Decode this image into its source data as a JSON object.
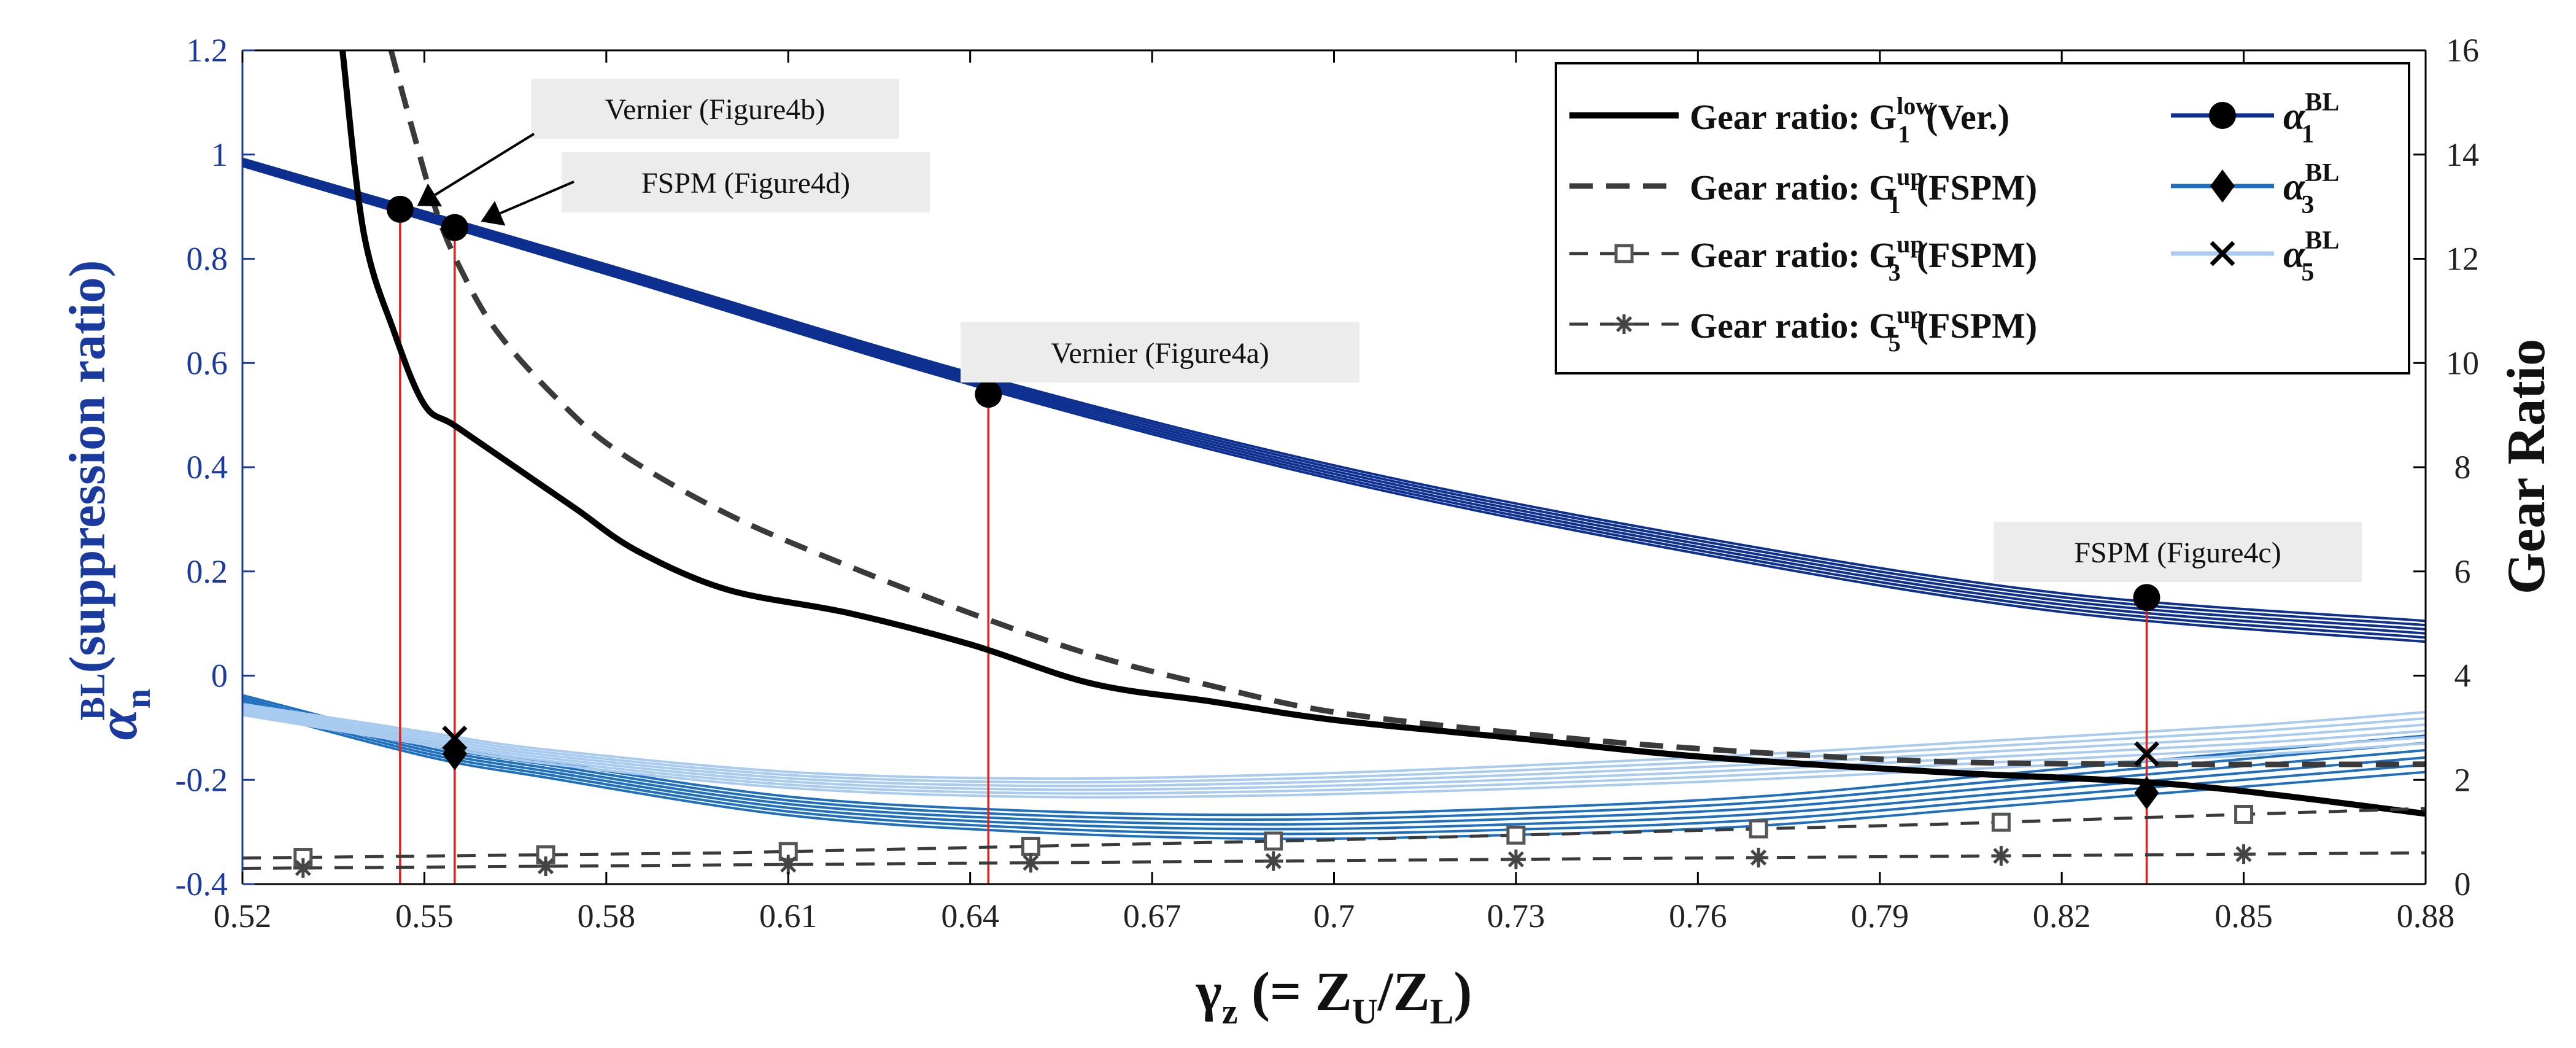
{
  "chart_data": {
    "type": "line",
    "xlabel": {
      "main": "γ",
      "sub": "z",
      "rest": " (= Z",
      "sub2": "U",
      "mid": "/Z",
      "sub3": "L",
      "end": ")"
    },
    "ylabel_left": {
      "main": "α",
      "sup": "BL",
      "sub": "n",
      "rest": "(suppression ratio)"
    },
    "ylabel_right": "Gear Ratio",
    "xlim": [
      0.52,
      0.88
    ],
    "ylim_left": [
      -0.4,
      1.2
    ],
    "ylim_right": [
      0,
      16
    ],
    "x_ticks": [
      "0.52",
      "0.55",
      "0.58",
      "0.61",
      "0.64",
      "0.67",
      "0.7",
      "0.73",
      "0.76",
      "0.79",
      "0.82",
      "0.85",
      "0.88"
    ],
    "y_left_ticks": [
      "-0.4",
      "-0.2",
      "0",
      "0.2",
      "0.4",
      "0.6",
      "0.8",
      "1",
      "1.2"
    ],
    "y_right_ticks": [
      "0",
      "2",
      "4",
      "6",
      "8",
      "10",
      "12",
      "14",
      "16"
    ],
    "colors": {
      "alpha1": "#0d2f8f",
      "alpha3": "#1f6fbf",
      "alpha5": "#a9cbef",
      "gear": "#000000",
      "gear_dash": "#3a3a3a",
      "marker_line": "#e0201a",
      "left_axis": "#1a3aa0",
      "callout_bg": "#ececec"
    },
    "series_alpha": [
      {
        "name": "α1",
        "x": [
          0.52,
          0.58,
          0.64,
          0.7,
          0.76,
          0.82,
          0.88
        ],
        "y": [
          0.985,
          0.78,
          0.57,
          0.39,
          0.25,
          0.14,
          0.085
        ],
        "spread": 0.02
      },
      {
        "name": "α3",
        "x": [
          0.52,
          0.55,
          0.57,
          0.61,
          0.65,
          0.69,
          0.73,
          0.77,
          0.81,
          0.85,
          0.88
        ],
        "y": [
          -0.05,
          -0.14,
          -0.18,
          -0.25,
          -0.28,
          -0.29,
          -0.28,
          -0.26,
          -0.22,
          -0.18,
          -0.15
        ],
        "spread": 0.035
      },
      {
        "name": "α5",
        "x": [
          0.52,
          0.55,
          0.57,
          0.61,
          0.65,
          0.69,
          0.73,
          0.77,
          0.81,
          0.85,
          0.88
        ],
        "y": [
          -0.065,
          -0.12,
          -0.155,
          -0.2,
          -0.215,
          -0.21,
          -0.195,
          -0.175,
          -0.15,
          -0.125,
          -0.1
        ],
        "spread": 0.03
      }
    ],
    "series_gear": [
      {
        "name": "G1 low (Ver.)",
        "style": "solid",
        "x": [
          0.5365,
          0.54,
          0.545,
          0.55,
          0.555,
          0.565,
          0.575,
          0.585,
          0.6,
          0.62,
          0.64,
          0.66,
          0.68,
          0.7,
          0.73,
          0.76,
          0.8,
          0.84,
          0.88
        ],
        "y": [
          16,
          12.5,
          10.6,
          9.2,
          8.8,
          8.0,
          7.2,
          6.4,
          5.65,
          5.2,
          4.6,
          3.85,
          3.5,
          3.15,
          2.8,
          2.45,
          2.15,
          1.9,
          1.35
        ]
      },
      {
        "name": "G1 up (FSPM)",
        "style": "dash",
        "x": [
          0.5445,
          0.548,
          0.552,
          0.556,
          0.562,
          0.572,
          0.582,
          0.6,
          0.62,
          0.64,
          0.66,
          0.68,
          0.7,
          0.73,
          0.76,
          0.8,
          0.84,
          0.88
        ],
        "y": [
          16,
          14.5,
          12.9,
          11.8,
          10.6,
          9.3,
          8.3,
          7.1,
          6.1,
          5.2,
          4.4,
          3.8,
          3.3,
          2.9,
          2.6,
          2.35,
          2.3,
          2.3
        ]
      },
      {
        "name": "G3 up (FSPM)",
        "style": "dash-square",
        "x": [
          0.52,
          0.6,
          0.7,
          0.8,
          0.88
        ],
        "y": [
          0.5,
          0.6,
          0.85,
          1.15,
          1.45
        ],
        "markers_x": [
          0.53,
          0.57,
          0.61,
          0.65,
          0.69,
          0.73,
          0.77,
          0.81,
          0.85
        ]
      },
      {
        "name": "G5 up (FSPM)",
        "style": "dash-star",
        "x": [
          0.52,
          0.88
        ],
        "y": [
          0.3,
          0.6
        ],
        "markers_x": [
          0.53,
          0.57,
          0.61,
          0.65,
          0.69,
          0.73,
          0.77,
          0.81,
          0.85
        ]
      }
    ],
    "markers": [
      {
        "x": 0.546,
        "y": 0.895,
        "shape": "circle"
      },
      {
        "x": 0.555,
        "y": 0.86,
        "shape": "circle"
      },
      {
        "x": 0.643,
        "y": 0.54,
        "shape": "circle"
      },
      {
        "x": 0.834,
        "y": 0.15,
        "shape": "circle"
      },
      {
        "x": 0.555,
        "y": -0.15,
        "shape": "diamond"
      },
      {
        "x": 0.834,
        "y": -0.225,
        "shape": "diamond"
      },
      {
        "x": 0.555,
        "y": -0.12,
        "shape": "cross"
      },
      {
        "x": 0.834,
        "y": -0.15,
        "shape": "cross"
      }
    ],
    "red_lines_x": [
      0.546,
      0.555,
      0.643,
      0.834
    ],
    "annotations": [
      {
        "text": "Vernier (Figure4b)",
        "arrow_to": [
          0.547,
          0.885
        ]
      },
      {
        "text": "FSPM (Figure4d)",
        "arrow_to": [
          0.5575,
          0.855
        ]
      },
      {
        "text": "Vernier (Figure4a)",
        "arrow_to": null
      },
      {
        "text": "FSPM (Figure4c)",
        "arrow_to": null
      }
    ],
    "legend": {
      "placement": "top-right",
      "left_entries": [
        {
          "prefix": "Gear ratio: G",
          "sub": "1",
          "sup": "low",
          "suffix": "(Ver.)",
          "style": "solid"
        },
        {
          "prefix": "Gear ratio: G",
          "sub": "1",
          "sup": "up",
          "suffix": "(FSPM)",
          "style": "dash"
        },
        {
          "prefix": "Gear ratio: G",
          "sub": "3",
          "sup": "up",
          "suffix": "(FSPM)",
          "style": "dash-square"
        },
        {
          "prefix": "Gear ratio: G",
          "sub": "5",
          "sup": "up",
          "suffix": "(FSPM)",
          "style": "dash-star"
        }
      ],
      "right_entries": [
        {
          "prefix": "α",
          "sub": "1",
          "sup": "BL",
          "marker": "circle"
        },
        {
          "prefix": "α",
          "sub": "3",
          "sup": "BL",
          "marker": "diamond"
        },
        {
          "prefix": "α",
          "sub": "5",
          "sup": "BL",
          "marker": "cross"
        }
      ]
    }
  }
}
